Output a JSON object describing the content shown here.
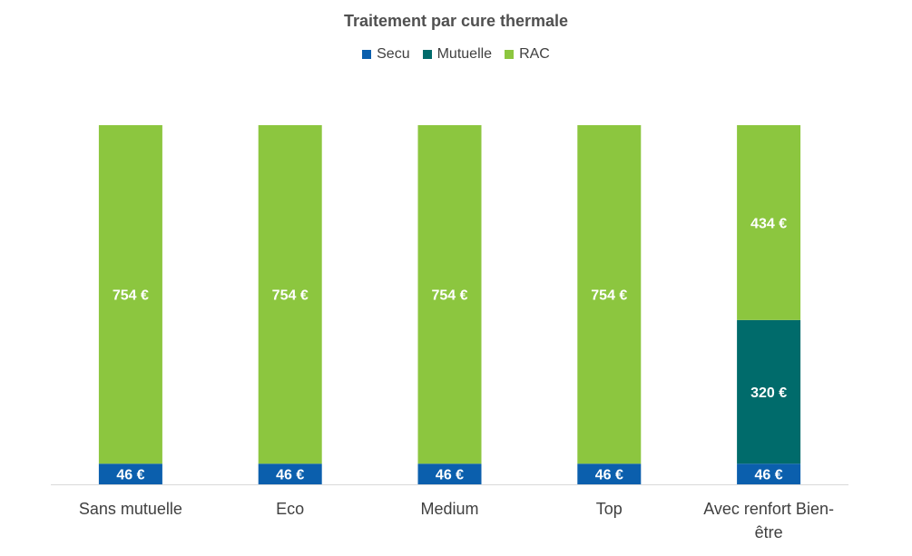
{
  "chart_data": {
    "type": "bar",
    "stacked": true,
    "title": "Traitement par cure thermale",
    "categories": [
      "Sans mutuelle",
      "Eco",
      "Medium",
      "Top",
      "Avec renfort Bien-être"
    ],
    "category_lines": [
      [
        "Sans mutuelle"
      ],
      [
        "Eco"
      ],
      [
        "Medium"
      ],
      [
        "Top"
      ],
      [
        "Avec renfort Bien-",
        "être"
      ]
    ],
    "series": [
      {
        "name": "Secu",
        "color": "#0b5fad",
        "values": [
          46,
          46,
          46,
          46,
          46
        ],
        "labels": [
          "46 €",
          "46 €",
          "46 €",
          "46 €",
          "46 €"
        ]
      },
      {
        "name": "Mutuelle",
        "color": "#006b6b",
        "values": [
          0,
          0,
          0,
          0,
          320
        ],
        "labels": [
          "",
          "",
          "",
          "",
          "320 €"
        ]
      },
      {
        "name": "RAC",
        "color": "#8cc63f",
        "values": [
          754,
          754,
          754,
          754,
          434
        ],
        "labels": [
          "754 €",
          "754 €",
          "754 €",
          "754 €",
          "434 €"
        ]
      }
    ],
    "legend_position": "top",
    "ylim": [
      0,
      800
    ],
    "grid": false,
    "xlabel": "",
    "ylabel": ""
  }
}
